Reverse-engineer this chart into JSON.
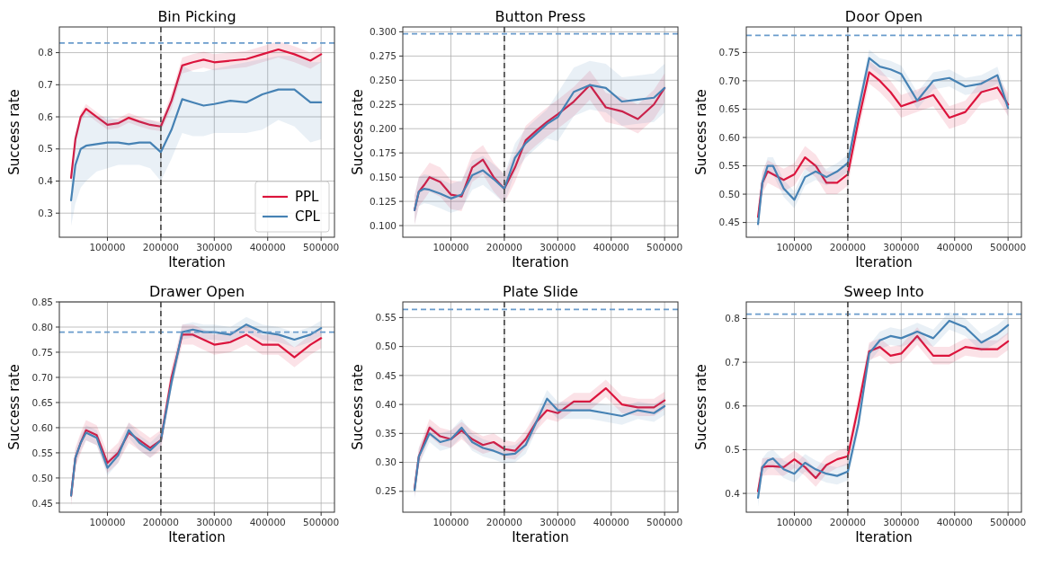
{
  "chart_data": [
    {
      "type": "line",
      "title": "Bin Picking",
      "xlabel": "Iteration",
      "ylabel": "Success rate",
      "x": [
        32000,
        40000,
        50000,
        60000,
        80000,
        100000,
        120000,
        140000,
        160000,
        180000,
        200000,
        220000,
        240000,
        260000,
        280000,
        300000,
        330000,
        360000,
        390000,
        420000,
        450000,
        480000,
        500000
      ],
      "xlim": [
        10000,
        525000
      ],
      "xticks": [
        100000,
        200000,
        300000,
        400000,
        500000
      ],
      "ylim": [
        0.225,
        0.88
      ],
      "yticks": [
        0.3,
        0.4,
        0.5,
        0.6,
        0.7,
        0.8
      ],
      "grid": true,
      "legend": "bottom right",
      "ref_lines": [
        {
          "axis": "y",
          "value": 0.83,
          "color": "#6a9ccc",
          "line_style": "dashed"
        },
        {
          "axis": "x",
          "value": 200000,
          "color": "#555555",
          "line_style": "dashed"
        }
      ],
      "series": [
        {
          "name": "PPL",
          "color": "#dc143c",
          "values": [
            0.41,
            0.53,
            0.6,
            0.625,
            0.6,
            0.575,
            0.58,
            0.597,
            0.585,
            0.575,
            0.57,
            0.65,
            0.76,
            0.77,
            0.778,
            0.77,
            0.775,
            0.78,
            0.795,
            0.81,
            0.795,
            0.775,
            0.795
          ],
          "lower": [
            0.395,
            0.515,
            0.585,
            0.61,
            0.585,
            0.56,
            0.565,
            0.582,
            0.57,
            0.56,
            0.555,
            0.625,
            0.735,
            0.745,
            0.753,
            0.745,
            0.75,
            0.755,
            0.77,
            0.785,
            0.77,
            0.75,
            0.77
          ],
          "upper": [
            0.425,
            0.545,
            0.615,
            0.64,
            0.615,
            0.59,
            0.595,
            0.612,
            0.6,
            0.59,
            0.585,
            0.675,
            0.785,
            0.795,
            0.803,
            0.795,
            0.8,
            0.805,
            0.82,
            0.835,
            0.82,
            0.8,
            0.82
          ]
        },
        {
          "name": "CPL",
          "color": "#4682b4",
          "values": [
            0.34,
            0.45,
            0.5,
            0.51,
            0.515,
            0.52,
            0.52,
            0.515,
            0.52,
            0.52,
            0.49,
            0.56,
            0.655,
            0.645,
            0.635,
            0.64,
            0.65,
            0.645,
            0.67,
            0.685,
            0.685,
            0.645,
            0.645
          ],
          "lower": [
            0.26,
            0.33,
            0.38,
            0.4,
            0.43,
            0.44,
            0.45,
            0.45,
            0.45,
            0.44,
            0.4,
            0.47,
            0.55,
            0.54,
            0.54,
            0.55,
            0.55,
            0.55,
            0.56,
            0.59,
            0.57,
            0.52,
            0.53
          ],
          "upper": [
            0.42,
            0.55,
            0.6,
            0.62,
            0.6,
            0.6,
            0.59,
            0.59,
            0.59,
            0.59,
            0.58,
            0.66,
            0.76,
            0.74,
            0.74,
            0.75,
            0.76,
            0.77,
            0.78,
            0.79,
            0.79,
            0.77,
            0.77
          ]
        }
      ]
    },
    {
      "type": "line",
      "title": "Button Press",
      "xlabel": "Iteration",
      "ylabel": "Success rate",
      "x": [
        32000,
        40000,
        50000,
        60000,
        80000,
        100000,
        120000,
        140000,
        160000,
        180000,
        200000,
        220000,
        240000,
        260000,
        280000,
        300000,
        330000,
        360000,
        390000,
        420000,
        450000,
        480000,
        500000
      ],
      "xlim": [
        10000,
        525000
      ],
      "xticks": [
        100000,
        200000,
        300000,
        400000,
        500000
      ],
      "ylim": [
        0.088,
        0.305
      ],
      "yticks": [
        {
          "value": 0.1,
          "label": "0.100"
        },
        {
          "value": 0.125,
          "label": "0.125"
        },
        {
          "value": 0.15,
          "label": "0.150"
        },
        {
          "value": 0.175,
          "label": "0.175"
        },
        {
          "value": 0.2,
          "label": "0.200"
        },
        {
          "value": 0.225,
          "label": "0.225"
        },
        {
          "value": 0.25,
          "label": "0.250"
        },
        {
          "value": 0.275,
          "label": "0.275"
        },
        {
          "value": 0.3,
          "label": "0.300"
        }
      ],
      "grid": true,
      "ref_lines": [
        {
          "axis": "y",
          "value": 0.298,
          "color": "#6a9ccc",
          "line_style": "dashed"
        },
        {
          "axis": "x",
          "value": 200000,
          "color": "#555555",
          "line_style": "dashed"
        }
      ],
      "series": [
        {
          "color": "#dc143c",
          "values": [
            0.116,
            0.135,
            0.142,
            0.15,
            0.145,
            0.132,
            0.13,
            0.16,
            0.168,
            0.15,
            0.138,
            0.16,
            0.188,
            0.198,
            0.207,
            0.215,
            0.228,
            0.245,
            0.222,
            0.218,
            0.21,
            0.225,
            0.242
          ],
          "lower": [
            0.101,
            0.12,
            0.127,
            0.135,
            0.13,
            0.117,
            0.115,
            0.145,
            0.153,
            0.135,
            0.123,
            0.145,
            0.173,
            0.183,
            0.192,
            0.2,
            0.213,
            0.23,
            0.207,
            0.203,
            0.195,
            0.21,
            0.227
          ],
          "upper": [
            0.131,
            0.15,
            0.157,
            0.165,
            0.16,
            0.147,
            0.145,
            0.175,
            0.183,
            0.165,
            0.153,
            0.175,
            0.203,
            0.213,
            0.222,
            0.23,
            0.243,
            0.26,
            0.237,
            0.233,
            0.225,
            0.24,
            0.257
          ]
        },
        {
          "color": "#4682b4",
          "values": [
            0.116,
            0.135,
            0.138,
            0.137,
            0.133,
            0.128,
            0.132,
            0.152,
            0.157,
            0.148,
            0.138,
            0.17,
            0.185,
            0.195,
            0.205,
            0.212,
            0.238,
            0.245,
            0.242,
            0.228,
            0.23,
            0.232,
            0.242
          ],
          "lower": [
            0.101,
            0.12,
            0.123,
            0.122,
            0.118,
            0.113,
            0.117,
            0.137,
            0.142,
            0.133,
            0.123,
            0.155,
            0.17,
            0.18,
            0.19,
            0.187,
            0.213,
            0.22,
            0.217,
            0.203,
            0.205,
            0.207,
            0.217
          ],
          "upper": [
            0.131,
            0.15,
            0.153,
            0.152,
            0.148,
            0.143,
            0.147,
            0.167,
            0.172,
            0.163,
            0.153,
            0.185,
            0.2,
            0.21,
            0.22,
            0.237,
            0.263,
            0.27,
            0.267,
            0.253,
            0.255,
            0.257,
            0.267
          ]
        }
      ]
    },
    {
      "type": "line",
      "title": "Door Open",
      "xlabel": "Iteration",
      "ylabel": "Success rate",
      "x": [
        32000,
        40000,
        50000,
        60000,
        80000,
        100000,
        120000,
        140000,
        160000,
        180000,
        200000,
        220000,
        240000,
        260000,
        280000,
        300000,
        330000,
        360000,
        390000,
        420000,
        450000,
        480000,
        500000
      ],
      "xlim": [
        10000,
        525000
      ],
      "xticks": [
        100000,
        200000,
        300000,
        400000,
        500000
      ],
      "ylim": [
        0.424,
        0.795
      ],
      "yticks": [
        0.45,
        {
          "value": 0.5,
          "label": "0.50"
        },
        0.55,
        {
          "value": 0.6,
          "label": "0.60"
        },
        0.65,
        {
          "value": 0.7,
          "label": "0.70"
        },
        0.75
      ],
      "grid": true,
      "ref_lines": [
        {
          "axis": "y",
          "value": 0.78,
          "color": "#6a9ccc",
          "line_style": "dashed"
        },
        {
          "axis": "x",
          "value": 200000,
          "color": "#555555",
          "line_style": "dashed"
        }
      ],
      "series": [
        {
          "color": "#dc143c",
          "values": [
            0.46,
            0.52,
            0.54,
            0.535,
            0.525,
            0.535,
            0.565,
            0.55,
            0.52,
            0.52,
            0.535,
            0.63,
            0.715,
            0.7,
            0.68,
            0.655,
            0.665,
            0.675,
            0.635,
            0.645,
            0.68,
            0.688,
            0.658
          ],
          "lower": [
            0.44,
            0.5,
            0.52,
            0.515,
            0.505,
            0.515,
            0.545,
            0.53,
            0.5,
            0.5,
            0.515,
            0.61,
            0.695,
            0.68,
            0.66,
            0.635,
            0.645,
            0.655,
            0.615,
            0.625,
            0.66,
            0.668,
            0.638
          ],
          "upper": [
            0.48,
            0.54,
            0.56,
            0.555,
            0.545,
            0.555,
            0.585,
            0.57,
            0.54,
            0.54,
            0.555,
            0.65,
            0.735,
            0.72,
            0.7,
            0.675,
            0.685,
            0.695,
            0.655,
            0.665,
            0.7,
            0.708,
            0.678
          ]
        },
        {
          "color": "#4682b4",
          "values": [
            0.447,
            0.52,
            0.55,
            0.55,
            0.51,
            0.49,
            0.53,
            0.54,
            0.53,
            0.54,
            0.555,
            0.65,
            0.74,
            0.725,
            0.72,
            0.712,
            0.665,
            0.7,
            0.705,
            0.69,
            0.695,
            0.71,
            0.652
          ],
          "lower": [
            0.432,
            0.505,
            0.535,
            0.535,
            0.495,
            0.475,
            0.515,
            0.525,
            0.515,
            0.525,
            0.54,
            0.635,
            0.725,
            0.71,
            0.705,
            0.697,
            0.65,
            0.685,
            0.69,
            0.675,
            0.68,
            0.695,
            0.637
          ],
          "upper": [
            0.462,
            0.535,
            0.565,
            0.565,
            0.525,
            0.505,
            0.545,
            0.555,
            0.545,
            0.555,
            0.57,
            0.665,
            0.755,
            0.74,
            0.735,
            0.727,
            0.68,
            0.715,
            0.72,
            0.705,
            0.71,
            0.725,
            0.667
          ]
        }
      ]
    },
    {
      "type": "line",
      "title": "Drawer Open",
      "xlabel": "Iteration",
      "ylabel": "Success rate",
      "x": [
        32000,
        40000,
        50000,
        60000,
        80000,
        100000,
        120000,
        140000,
        160000,
        180000,
        200000,
        220000,
        240000,
        260000,
        280000,
        300000,
        330000,
        360000,
        390000,
        420000,
        450000,
        480000,
        500000
      ],
      "xlim": [
        10000,
        525000
      ],
      "xticks": [
        100000,
        200000,
        300000,
        400000,
        500000
      ],
      "ylim": [
        0.432,
        0.85
      ],
      "yticks": [
        0.45,
        {
          "value": 0.5,
          "label": "0.50"
        },
        0.55,
        {
          "value": 0.6,
          "label": "0.60"
        },
        0.65,
        {
          "value": 0.7,
          "label": "0.70"
        },
        0.75,
        {
          "value": 0.8,
          "label": "0.80"
        },
        0.85
      ],
      "grid": true,
      "ref_lines": [
        {
          "axis": "y",
          "value": 0.79,
          "color": "#6a9ccc",
          "line_style": "dashed"
        },
        {
          "axis": "x",
          "value": 200000,
          "color": "#555555",
          "line_style": "dashed"
        }
      ],
      "series": [
        {
          "color": "#dc143c",
          "values": [
            0.465,
            0.54,
            0.57,
            0.595,
            0.585,
            0.53,
            0.55,
            0.59,
            0.575,
            0.56,
            0.575,
            0.7,
            0.785,
            0.785,
            0.775,
            0.765,
            0.77,
            0.785,
            0.765,
            0.765,
            0.74,
            0.765,
            0.778
          ],
          "lower": [
            0.445,
            0.52,
            0.55,
            0.575,
            0.565,
            0.51,
            0.53,
            0.57,
            0.555,
            0.54,
            0.555,
            0.68,
            0.765,
            0.765,
            0.755,
            0.745,
            0.75,
            0.765,
            0.745,
            0.745,
            0.72,
            0.745,
            0.758
          ],
          "upper": [
            0.485,
            0.56,
            0.59,
            0.615,
            0.605,
            0.55,
            0.57,
            0.61,
            0.595,
            0.58,
            0.595,
            0.72,
            0.805,
            0.805,
            0.795,
            0.785,
            0.79,
            0.805,
            0.785,
            0.785,
            0.76,
            0.785,
            0.798
          ]
        },
        {
          "color": "#4682b4",
          "values": [
            0.465,
            0.54,
            0.57,
            0.59,
            0.58,
            0.52,
            0.545,
            0.595,
            0.57,
            0.555,
            0.575,
            0.69,
            0.79,
            0.795,
            0.79,
            0.79,
            0.785,
            0.805,
            0.79,
            0.785,
            0.775,
            0.785,
            0.798
          ],
          "lower": [
            0.45,
            0.525,
            0.555,
            0.575,
            0.565,
            0.505,
            0.53,
            0.58,
            0.555,
            0.54,
            0.56,
            0.675,
            0.775,
            0.78,
            0.775,
            0.775,
            0.77,
            0.79,
            0.775,
            0.77,
            0.76,
            0.77,
            0.783
          ],
          "upper": [
            0.48,
            0.555,
            0.585,
            0.605,
            0.595,
            0.535,
            0.56,
            0.61,
            0.585,
            0.57,
            0.59,
            0.705,
            0.805,
            0.81,
            0.805,
            0.805,
            0.8,
            0.82,
            0.805,
            0.8,
            0.79,
            0.8,
            0.813
          ]
        }
      ]
    },
    {
      "type": "line",
      "title": "Plate Slide",
      "xlabel": "Iteration",
      "ylabel": "Success rate",
      "x": [
        32000,
        40000,
        50000,
        60000,
        80000,
        100000,
        120000,
        140000,
        160000,
        180000,
        200000,
        220000,
        240000,
        260000,
        280000,
        300000,
        330000,
        360000,
        390000,
        420000,
        450000,
        480000,
        500000
      ],
      "xlim": [
        10000,
        525000
      ],
      "xticks": [
        100000,
        200000,
        300000,
        400000,
        500000
      ],
      "ylim": [
        0.214,
        0.577
      ],
      "yticks": [
        0.25,
        {
          "value": 0.3,
          "label": "0.30"
        },
        0.35,
        {
          "value": 0.4,
          "label": "0.40"
        },
        0.45,
        {
          "value": 0.5,
          "label": "0.50"
        },
        0.55
      ],
      "grid": true,
      "ref_lines": [
        {
          "axis": "y",
          "value": 0.564,
          "color": "#6a9ccc",
          "line_style": "dashed"
        },
        {
          "axis": "x",
          "value": 200000,
          "color": "#555555",
          "line_style": "dashed"
        }
      ],
      "series": [
        {
          "color": "#dc143c",
          "values": [
            0.255,
            0.31,
            0.335,
            0.36,
            0.345,
            0.34,
            0.355,
            0.34,
            0.33,
            0.335,
            0.323,
            0.32,
            0.34,
            0.37,
            0.39,
            0.385,
            0.405,
            0.405,
            0.428,
            0.4,
            0.395,
            0.395,
            0.407
          ],
          "lower": [
            0.24,
            0.295,
            0.32,
            0.345,
            0.33,
            0.325,
            0.34,
            0.325,
            0.315,
            0.32,
            0.308,
            0.305,
            0.325,
            0.355,
            0.375,
            0.37,
            0.39,
            0.39,
            0.413,
            0.385,
            0.38,
            0.38,
            0.392
          ],
          "upper": [
            0.27,
            0.325,
            0.35,
            0.375,
            0.36,
            0.355,
            0.37,
            0.355,
            0.345,
            0.35,
            0.338,
            0.335,
            0.355,
            0.385,
            0.405,
            0.4,
            0.42,
            0.42,
            0.443,
            0.415,
            0.41,
            0.41,
            0.422
          ]
        },
        {
          "color": "#4682b4",
          "values": [
            0.252,
            0.31,
            0.33,
            0.35,
            0.335,
            0.34,
            0.36,
            0.335,
            0.325,
            0.32,
            0.313,
            0.315,
            0.33,
            0.37,
            0.41,
            0.39,
            0.39,
            0.39,
            0.385,
            0.38,
            0.39,
            0.385,
            0.397
          ],
          "lower": [
            0.237,
            0.295,
            0.315,
            0.335,
            0.32,
            0.325,
            0.345,
            0.32,
            0.31,
            0.305,
            0.298,
            0.3,
            0.315,
            0.355,
            0.395,
            0.375,
            0.375,
            0.375,
            0.37,
            0.365,
            0.375,
            0.37,
            0.382
          ],
          "upper": [
            0.267,
            0.325,
            0.345,
            0.365,
            0.35,
            0.355,
            0.375,
            0.35,
            0.34,
            0.335,
            0.328,
            0.33,
            0.345,
            0.385,
            0.425,
            0.405,
            0.405,
            0.405,
            0.4,
            0.395,
            0.405,
            0.4,
            0.412
          ]
        }
      ]
    },
    {
      "type": "line",
      "title": "Sweep Into",
      "xlabel": "Iteration",
      "ylabel": "Success rate",
      "x": [
        32000,
        40000,
        50000,
        60000,
        80000,
        100000,
        120000,
        140000,
        160000,
        180000,
        200000,
        220000,
        240000,
        260000,
        280000,
        300000,
        330000,
        360000,
        390000,
        420000,
        450000,
        480000,
        500000
      ],
      "xlim": [
        10000,
        525000
      ],
      "xticks": [
        100000,
        200000,
        300000,
        400000,
        500000
      ],
      "ylim": [
        0.357,
        0.838
      ],
      "yticks": [
        0.4,
        0.5,
        0.6,
        0.7,
        0.8
      ],
      "grid": true,
      "ref_lines": [
        {
          "axis": "y",
          "value": 0.81,
          "color": "#6a9ccc",
          "line_style": "dashed"
        },
        {
          "axis": "x",
          "value": 200000,
          "color": "#555555",
          "line_style": "dashed"
        }
      ],
      "series": [
        {
          "color": "#dc143c",
          "values": [
            0.405,
            0.46,
            0.462,
            0.462,
            0.46,
            0.478,
            0.46,
            0.435,
            0.465,
            0.478,
            0.485,
            0.6,
            0.725,
            0.735,
            0.715,
            0.72,
            0.76,
            0.715,
            0.715,
            0.735,
            0.73,
            0.73,
            0.748
          ],
          "lower": [
            0.385,
            0.44,
            0.442,
            0.442,
            0.44,
            0.458,
            0.44,
            0.415,
            0.445,
            0.458,
            0.465,
            0.58,
            0.705,
            0.715,
            0.695,
            0.7,
            0.74,
            0.695,
            0.695,
            0.715,
            0.71,
            0.71,
            0.728
          ],
          "upper": [
            0.425,
            0.48,
            0.482,
            0.482,
            0.48,
            0.498,
            0.48,
            0.455,
            0.485,
            0.498,
            0.505,
            0.62,
            0.745,
            0.755,
            0.735,
            0.74,
            0.78,
            0.735,
            0.735,
            0.755,
            0.75,
            0.75,
            0.768
          ]
        },
        {
          "color": "#4682b4",
          "values": [
            0.39,
            0.46,
            0.475,
            0.48,
            0.455,
            0.445,
            0.47,
            0.455,
            0.445,
            0.44,
            0.45,
            0.56,
            0.72,
            0.75,
            0.76,
            0.755,
            0.77,
            0.755,
            0.795,
            0.78,
            0.745,
            0.765,
            0.785
          ],
          "lower": [
            0.37,
            0.44,
            0.455,
            0.46,
            0.435,
            0.425,
            0.45,
            0.435,
            0.425,
            0.42,
            0.43,
            0.54,
            0.7,
            0.73,
            0.74,
            0.735,
            0.75,
            0.735,
            0.775,
            0.76,
            0.725,
            0.745,
            0.765
          ],
          "upper": [
            0.41,
            0.48,
            0.495,
            0.5,
            0.475,
            0.465,
            0.49,
            0.475,
            0.465,
            0.46,
            0.47,
            0.58,
            0.74,
            0.77,
            0.78,
            0.775,
            0.79,
            0.775,
            0.815,
            0.8,
            0.765,
            0.785,
            0.805
          ]
        }
      ]
    }
  ]
}
